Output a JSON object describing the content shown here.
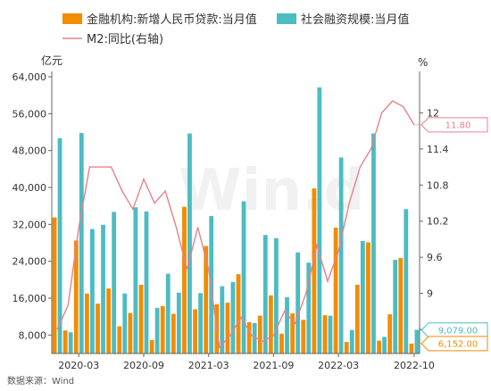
{
  "chart_data": {
    "type": "bar",
    "x": [
      "2020-01",
      "2020-02",
      "2020-03",
      "2020-04",
      "2020-05",
      "2020-06",
      "2020-07",
      "2020-08",
      "2020-09",
      "2020-10",
      "2020-11",
      "2020-12",
      "2021-01",
      "2021-02",
      "2021-03",
      "2021-04",
      "2021-05",
      "2021-06",
      "2021-07",
      "2021-08",
      "2021-09",
      "2021-10",
      "2021-11",
      "2021-12",
      "2022-01",
      "2022-02",
      "2022-03",
      "2022-04",
      "2022-05",
      "2022-06",
      "2022-07",
      "2022-08",
      "2022-09",
      "2022-10"
    ],
    "x_tick_labels": [
      {
        "x": "2020-03",
        "label": "2020-03"
      },
      {
        "x": "2020-09",
        "label": "2020-09"
      },
      {
        "x": "2021-03",
        "label": "2021-03"
      },
      {
        "x": "2021-09",
        "label": "2021-09"
      },
      {
        "x": "2022-03",
        "label": "2022-03"
      },
      {
        "x": "2022-10",
        "label": "2022-10"
      }
    ],
    "series": [
      {
        "name": "金融机构:新增人民币贷款:当月值",
        "type": "bar",
        "axis": "left",
        "color": "#f28c00",
        "values": [
          33500,
          9000,
          28500,
          17000,
          14800,
          18100,
          9900,
          12800,
          18900,
          6900,
          14300,
          12600,
          35800,
          13600,
          27300,
          14700,
          15000,
          21200,
          10800,
          12200,
          16600,
          8300,
          12700,
          11300,
          39800,
          12300,
          31300,
          6500,
          18900,
          28100,
          6800,
          12500,
          24700,
          6152
        ]
      },
      {
        "name": "社会融资规模:当月值",
        "type": "bar",
        "axis": "left",
        "color": "#4cbcc2",
        "values": [
          50700,
          8600,
          51800,
          31000,
          31900,
          34700,
          17000,
          35700,
          34800,
          13900,
          21300,
          17200,
          51700,
          17100,
          33800,
          18600,
          19500,
          37000,
          10600,
          29700,
          29000,
          16200,
          25900,
          23700,
          61700,
          12200,
          46500,
          9100,
          28400,
          51700,
          7600,
          24300,
          35300,
          9079
        ]
      },
      {
        "name": "M2:同比(右轴)",
        "type": "line",
        "axis": "right",
        "color": "#e8808a",
        "values": [
          8.4,
          8.8,
          10.1,
          11.1,
          11.1,
          11.1,
          10.7,
          10.4,
          10.9,
          10.5,
          10.7,
          10.1,
          9.4,
          10.1,
          9.4,
          8.1,
          8.3,
          8.6,
          8.3,
          8.2,
          8.3,
          8.7,
          8.5,
          9.0,
          9.8,
          9.2,
          9.7,
          10.5,
          11.1,
          11.4,
          12.0,
          12.2,
          12.1,
          11.8
        ]
      }
    ],
    "y_left": {
      "unit": "亿元",
      "min": 4000,
      "max": 64000,
      "ticks": [
        "64,000",
        "56,000",
        "48,000",
        "40,000",
        "32,000",
        "24,000",
        "16,000",
        "8,000"
      ],
      "tick_values": [
        64000,
        56000,
        48000,
        40000,
        32000,
        24000,
        16000,
        8000
      ]
    },
    "y_right": {
      "unit": "%",
      "min": 8.0,
      "max": 12.6,
      "ticks": [
        "12",
        "11.4",
        "10.8",
        "10.2",
        "9.6",
        "9",
        "8.4"
      ],
      "tick_values": [
        12,
        11.4,
        10.8,
        10.2,
        9.6,
        9,
        8.4
      ]
    },
    "end_labels": [
      {
        "series": "M2:同比(右轴)",
        "text": "11.80",
        "color": "#e8808a"
      },
      {
        "series": "社会融资规模:当月值",
        "text": "9,079.00",
        "color": "#4cbcc2"
      },
      {
        "series": "金融机构:新增人民币贷款:当月值",
        "text": "6,152.00",
        "color": "#f28c00"
      }
    ],
    "grid": false,
    "legend": "top",
    "watermark": "Win.d",
    "source": "数据来源：Wind"
  }
}
